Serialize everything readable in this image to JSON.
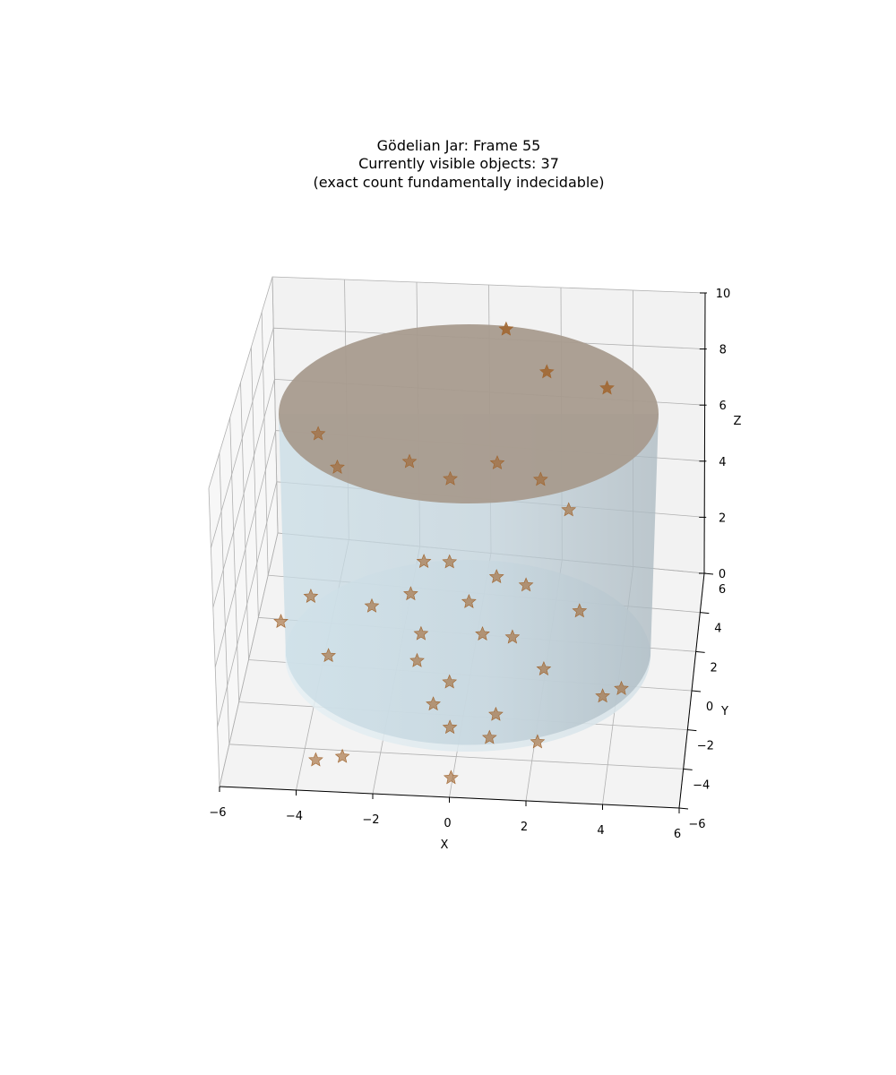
{
  "chart_data": {
    "type": "scatter",
    "title_lines": [
      "Gödelian Jar: Frame 55",
      "Currently visible objects: 37",
      "(exact count fundamentally indecidable)"
    ],
    "xlabel": "X",
    "ylabel": "Y",
    "zlabel": "Z",
    "xlim": [
      -6,
      6
    ],
    "ylim": [
      -6,
      6
    ],
    "zlim": [
      0,
      10
    ],
    "x_ticks": [
      "−6",
      "−4",
      "−2",
      "0",
      "2",
      "4",
      "6"
    ],
    "y_ticks": [
      "−6",
      "−4",
      "−2",
      "0",
      "2",
      "4",
      "6"
    ],
    "z_ticks": [
      "0",
      "2",
      "4",
      "6",
      "8",
      "10"
    ],
    "grid": true,
    "jar": {
      "radius": 5,
      "z_bottom": 0,
      "z_top": 7,
      "wall_color": "#add8e6",
      "contents_color": "#a08c78"
    },
    "marker": "star",
    "marker_color": "#a0642d",
    "points": [
      [
        0.6,
        4.7,
        9.6
      ],
      [
        1.8,
        4.0,
        8.9
      ],
      [
        3.5,
        3.8,
        8.9
      ],
      [
        -1.8,
        1.7,
        6.6
      ],
      [
        0.6,
        1.9,
        6.9
      ],
      [
        1.8,
        1.8,
        6.6
      ],
      [
        -4.4,
        2.4,
        6.5
      ],
      [
        -3.8,
        1.8,
        5.9
      ],
      [
        -0.7,
        1.9,
        6.0
      ],
      [
        2.6,
        1.4,
        5.9
      ],
      [
        -1.3,
        0.6,
        3.8
      ],
      [
        -0.6,
        0.6,
        3.9
      ],
      [
        0.7,
        0.4,
        3.7
      ],
      [
        0.0,
        -0.2,
        3.1
      ],
      [
        1.5,
        0.4,
        3.5
      ],
      [
        -2.6,
        -0.5,
        2.8
      ],
      [
        -1.6,
        0.0,
        3.0
      ],
      [
        -4.3,
        -0.1,
        2.6
      ],
      [
        -1.2,
        -1.2,
        2.5
      ],
      [
        0.4,
        -0.6,
        2.2
      ],
      [
        1.2,
        -0.5,
        2.1
      ],
      [
        -5.0,
        -1.0,
        2.3
      ],
      [
        -3.6,
        -2.0,
        2.0
      ],
      [
        -1.3,
        -1.3,
        1.5
      ],
      [
        -0.4,
        -1.6,
        1.0
      ],
      [
        2.1,
        -1.2,
        1.5
      ],
      [
        4.2,
        -1.4,
        1.1
      ],
      [
        2.1,
        -3.4,
        0.3
      ],
      [
        -0.8,
        -2.0,
        0.4
      ],
      [
        0.9,
        -2.3,
        0.4
      ],
      [
        3.7,
        -1.5,
        0.8
      ],
      [
        -0.3,
        -2.6,
        0.0
      ],
      [
        0.8,
        -3.1,
        0.1
      ],
      [
        -3.6,
        -5.0,
        0.4
      ],
      [
        -2.9,
        -5.0,
        0.6
      ],
      [
        0.0,
        -5.5,
        0.4
      ],
      [
        3.0,
        -0.2,
        3.2
      ]
    ]
  }
}
